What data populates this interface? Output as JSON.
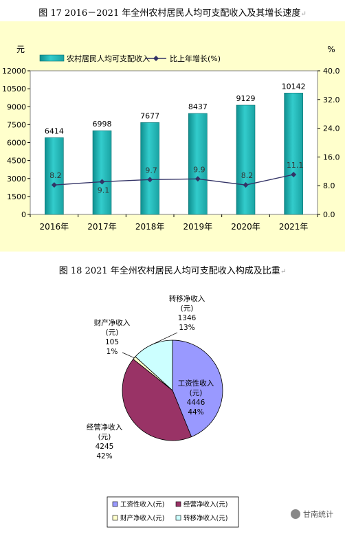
{
  "figure1": {
    "caption": "图 17    2016－2021 年全州农村居民人均可支配收入及其增长速度",
    "chart_data": {
      "type": "bar+line",
      "categories": [
        "2016年",
        "2017年",
        "2018年",
        "2019年",
        "2020年",
        "2021年"
      ],
      "series": [
        {
          "name": "农村居民人均可支配收入",
          "type": "bar",
          "axis": "left",
          "values": [
            6414,
            6998,
            7677,
            8437,
            9129,
            10142
          ],
          "labels": [
            "6414",
            "6998",
            "7677",
            "8437",
            "9129",
            "10142"
          ]
        },
        {
          "name": "比上年增长(%)",
          "type": "line",
          "axis": "right",
          "values": [
            8.2,
            9.1,
            9.7,
            9.9,
            8.2,
            11.1
          ],
          "labels": [
            "8.2",
            "9.1",
            "9.7",
            "9.9",
            "8.2",
            "11.1"
          ]
        }
      ],
      "left_axis": {
        "unit": "元",
        "ylim": [
          0,
          12000
        ],
        "ticks": [
          0,
          1500,
          3000,
          4500,
          6000,
          7500,
          9000,
          10500,
          12000
        ],
        "tick_labels": [
          "0",
          "1500",
          "3000",
          "4500",
          "6000",
          "7500",
          "9000",
          "10500",
          "12000"
        ]
      },
      "right_axis": {
        "unit": "%",
        "ylim": [
          0,
          40
        ],
        "ticks": [
          0,
          8,
          16,
          24,
          32,
          40
        ],
        "tick_labels": [
          "0.0",
          "8.0",
          "16.0",
          "24.0",
          "32.0",
          "40.0"
        ]
      },
      "legend": "top",
      "grid": false,
      "colors": {
        "bar": "#33cccc",
        "bar_dark": "#0f8f8f",
        "line": "#333366",
        "background": "#ffffcc"
      }
    }
  },
  "figure2": {
    "caption": "图 18    2021 年全州农村居民人均可支配收入构成及比重",
    "chart_data": {
      "type": "pie",
      "slices": [
        {
          "name": "工资性收入(元)",
          "label_name": "工资性收入",
          "unit": "(元)",
          "value": 4446,
          "percent": "44%",
          "color": "#9999ff"
        },
        {
          "name": "经营净收入(元)",
          "label_name": "经营净收入",
          "unit": "(元)",
          "value": 4245,
          "percent": "42%",
          "color": "#993366"
        },
        {
          "name": "财产净收入(元)",
          "label_name": "财产净收入",
          "unit": "(元)",
          "value": 105,
          "percent": "1%",
          "color": "#ffffcc"
        },
        {
          "name": "转移净收入(元)",
          "label_name": "转移净收入",
          "unit": "(元)",
          "value": 1346,
          "percent": "13%",
          "color": "#ccffff"
        }
      ],
      "legend": "bottom"
    }
  },
  "watermark": {
    "text": "甘南统计"
  }
}
